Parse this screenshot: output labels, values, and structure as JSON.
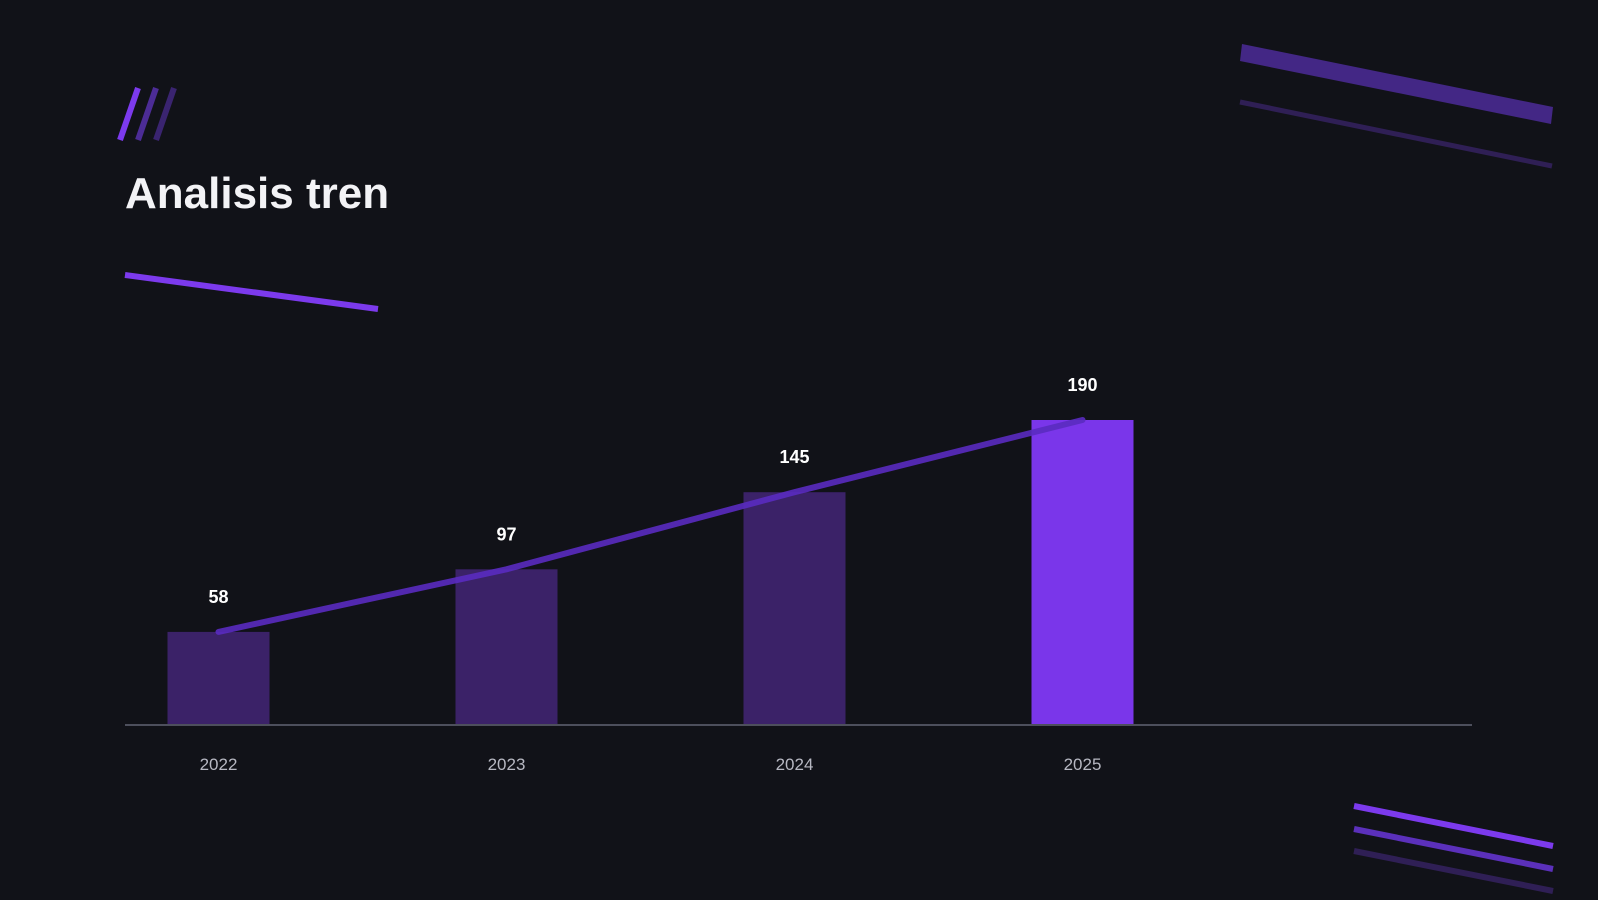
{
  "slide": {
    "title": "Analisis tren"
  },
  "chart_data": {
    "type": "bar",
    "title": "Analisis tren",
    "categories": [
      "2022",
      "2023",
      "2024",
      "2025"
    ],
    "values": [
      58,
      97,
      145,
      190
    ],
    "data_labels": [
      "58",
      "97",
      "145",
      "190"
    ],
    "trend_line": true,
    "ylim": [
      0,
      190
    ],
    "grid": false,
    "legend": "none",
    "colors": {
      "bar": "#3b2268",
      "highlight_bar": "#7a36ea",
      "trend_line": "#5a2bc0",
      "axis": "#4d4f5c",
      "tick_label": "#b7b8c2",
      "value_label": "#ffffff"
    }
  },
  "decor": {
    "accent": "#7c3aed",
    "accent_dim": "#432785",
    "accent_dark": "#2f1f55",
    "icons": [
      "triple-slash-icon",
      "accent-underline",
      "corner-stripes-top-right",
      "corner-stripes-bottom-right"
    ]
  }
}
